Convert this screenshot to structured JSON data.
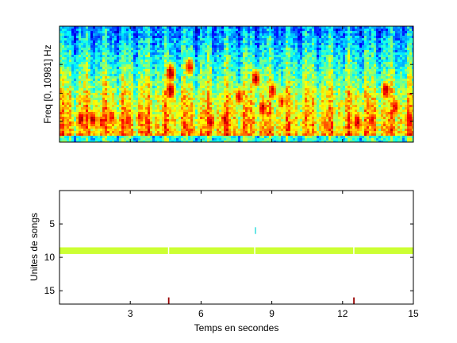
{
  "figure": {
    "background": "#ffffff"
  },
  "chart_data": [
    {
      "type": "heatmap",
      "title": "",
      "xlabel": "",
      "ylabel": "Freq [0, 10981] Hz",
      "xlim": [
        0,
        15
      ],
      "ylim": [
        0,
        10981
      ],
      "colormap": "jet",
      "description_regions": [
        {
          "x_start": 0.0,
          "x_end": 15.0,
          "level": "low-mid",
          "band": "upper"
        },
        {
          "x_start": 0.0,
          "x_end": 15.0,
          "level": "mid-high",
          "band": "lower"
        }
      ],
      "hot_spots": [
        {
          "t": 0.9,
          "f": 0.2,
          "intensity": 0.95
        },
        {
          "t": 1.4,
          "f": 0.2,
          "intensity": 0.95
        },
        {
          "t": 1.8,
          "f": 0.18,
          "intensity": 0.9
        },
        {
          "t": 2.2,
          "f": 0.22,
          "intensity": 0.9
        },
        {
          "t": 2.9,
          "f": 0.2,
          "intensity": 0.9
        },
        {
          "t": 3.4,
          "f": 0.22,
          "intensity": 0.85
        },
        {
          "t": 4.7,
          "f": 0.45,
          "intensity": 1.0
        },
        {
          "t": 4.7,
          "f": 0.6,
          "intensity": 1.0
        },
        {
          "t": 5.5,
          "f": 0.65,
          "intensity": 0.9
        },
        {
          "t": 6.4,
          "f": 0.18,
          "intensity": 0.95
        },
        {
          "t": 7.0,
          "f": 0.2,
          "intensity": 0.95
        },
        {
          "t": 7.6,
          "f": 0.4,
          "intensity": 0.9
        },
        {
          "t": 8.3,
          "f": 0.55,
          "intensity": 0.95
        },
        {
          "t": 8.6,
          "f": 0.3,
          "intensity": 0.95
        },
        {
          "t": 9.0,
          "f": 0.45,
          "intensity": 0.9
        },
        {
          "t": 9.4,
          "f": 0.35,
          "intensity": 0.85
        },
        {
          "t": 12.6,
          "f": 0.18,
          "intensity": 0.95
        },
        {
          "t": 13.2,
          "f": 0.2,
          "intensity": 0.9
        },
        {
          "t": 13.8,
          "f": 0.45,
          "intensity": 0.95
        },
        {
          "t": 14.2,
          "f": 0.3,
          "intensity": 0.9
        },
        {
          "t": 14.8,
          "f": 0.2,
          "intensity": 0.95
        }
      ]
    },
    {
      "type": "scatter",
      "title": "",
      "xlabel": "Temps en secondes",
      "ylabel": "Unites de songs",
      "xlim": [
        0,
        15
      ],
      "ylim": [
        0,
        17
      ],
      "y_reversed": true,
      "xticks": [
        3,
        6,
        9,
        12,
        15
      ],
      "yticks": [
        5,
        10,
        15
      ],
      "series": [
        {
          "color": "#ccff33",
          "y": 9,
          "segments": [
            [
              0.0,
              4.6
            ],
            [
              4.65,
              8.25
            ],
            [
              8.3,
              12.45
            ],
            [
              12.5,
              15.0
            ]
          ]
        },
        {
          "color": "#33dddd",
          "y": 6,
          "segments": [
            [
              8.28,
              8.33
            ]
          ]
        },
        {
          "color": "#990000",
          "y": 16.5,
          "segments": [
            [
              4.6,
              4.66
            ],
            [
              12.45,
              12.51
            ]
          ]
        }
      ]
    }
  ]
}
